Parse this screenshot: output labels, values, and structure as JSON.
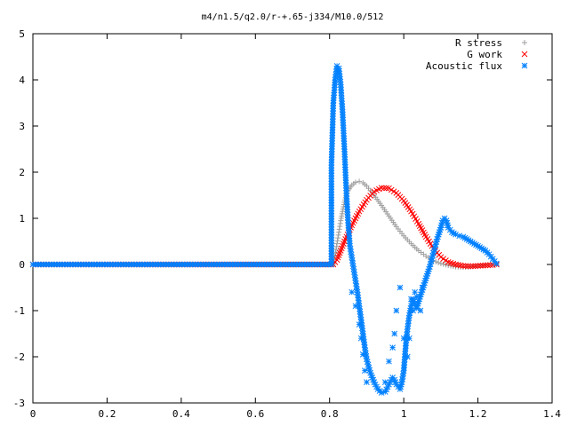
{
  "chart_data": {
    "type": "scatter",
    "title": "m4/n1.5/q2.0/r-+.65-j334/M10.0/512",
    "xlabel": "",
    "ylabel": "",
    "xlim": [
      0,
      1.4
    ],
    "ylim": [
      -3,
      5
    ],
    "x_ticks": [
      "0",
      "0.2",
      "0.4",
      "0.6",
      "0.8",
      "1",
      "1.2",
      "1.4"
    ],
    "y_ticks": [
      "5",
      "4",
      "3",
      "2",
      "1",
      "0",
      "-1",
      "-2",
      "-3"
    ],
    "grid": false,
    "legend_position": "top-right",
    "series": [
      {
        "name": "R stress",
        "marker": "plus",
        "color": "#a0a0a0",
        "points": [
          [
            0.0,
            0
          ],
          [
            0.81,
            0
          ],
          [
            0.815,
            0.2
          ],
          [
            0.82,
            0.45
          ],
          [
            0.825,
            0.7
          ],
          [
            0.83,
            0.95
          ],
          [
            0.835,
            1.15
          ],
          [
            0.84,
            1.35
          ],
          [
            0.845,
            1.5
          ],
          [
            0.85,
            1.6
          ],
          [
            0.86,
            1.72
          ],
          [
            0.87,
            1.78
          ],
          [
            0.88,
            1.8
          ],
          [
            0.89,
            1.77
          ],
          [
            0.9,
            1.7
          ],
          [
            0.92,
            1.5
          ],
          [
            0.94,
            1.28
          ],
          [
            0.96,
            1.05
          ],
          [
            0.98,
            0.82
          ],
          [
            1.0,
            0.62
          ],
          [
            1.02,
            0.45
          ],
          [
            1.04,
            0.3
          ],
          [
            1.06,
            0.18
          ],
          [
            1.08,
            0.08
          ],
          [
            1.1,
            0.02
          ],
          [
            1.12,
            -0.02
          ],
          [
            1.14,
            -0.05
          ],
          [
            1.16,
            -0.06
          ],
          [
            1.18,
            -0.05
          ],
          [
            1.2,
            -0.03
          ],
          [
            1.22,
            -0.01
          ],
          [
            1.25,
            0
          ]
        ]
      },
      {
        "name": "G work",
        "marker": "cross",
        "color": "#ff0000",
        "points": [
          [
            0.0,
            0
          ],
          [
            0.81,
            0
          ],
          [
            0.82,
            0.1
          ],
          [
            0.83,
            0.3
          ],
          [
            0.84,
            0.5
          ],
          [
            0.86,
            0.85
          ],
          [
            0.88,
            1.15
          ],
          [
            0.9,
            1.4
          ],
          [
            0.92,
            1.58
          ],
          [
            0.94,
            1.66
          ],
          [
            0.96,
            1.65
          ],
          [
            0.98,
            1.55
          ],
          [
            1.0,
            1.38
          ],
          [
            1.02,
            1.15
          ],
          [
            1.04,
            0.88
          ],
          [
            1.06,
            0.6
          ],
          [
            1.08,
            0.35
          ],
          [
            1.1,
            0.16
          ],
          [
            1.12,
            0.05
          ],
          [
            1.14,
            0.0
          ],
          [
            1.16,
            -0.03
          ],
          [
            1.18,
            -0.04
          ],
          [
            1.2,
            -0.03
          ],
          [
            1.22,
            -0.02
          ],
          [
            1.24,
            -0.01
          ],
          [
            1.25,
            0
          ]
        ]
      },
      {
        "name": "Acoustic flux",
        "marker": "star",
        "color": "#0080ff",
        "points": [
          [
            0.0,
            0
          ],
          [
            0.805,
            0
          ],
          [
            0.805,
            2.15
          ],
          [
            0.81,
            3.5
          ],
          [
            0.815,
            4.0
          ],
          [
            0.82,
            4.3
          ],
          [
            0.825,
            4.25
          ],
          [
            0.83,
            3.9
          ],
          [
            0.835,
            3.3
          ],
          [
            0.84,
            2.5
          ],
          [
            0.845,
            1.6
          ],
          [
            0.85,
            0.9
          ],
          [
            0.855,
            0.4
          ],
          [
            0.86,
            0.15
          ],
          [
            0.865,
            -0.1
          ],
          [
            0.87,
            -0.35
          ],
          [
            0.875,
            -0.6
          ],
          [
            0.88,
            -0.9
          ],
          [
            0.885,
            -1.2
          ],
          [
            0.89,
            -1.5
          ],
          [
            0.895,
            -1.8
          ],
          [
            0.9,
            -2.05
          ],
          [
            0.91,
            -2.35
          ],
          [
            0.92,
            -2.55
          ],
          [
            0.93,
            -2.7
          ],
          [
            0.94,
            -2.78
          ],
          [
            0.95,
            -2.76
          ],
          [
            0.96,
            -2.6
          ],
          [
            0.97,
            -2.45
          ],
          [
            0.975,
            -2.5
          ],
          [
            0.98,
            -2.6
          ],
          [
            0.99,
            -2.7
          ],
          [
            0.995,
            -2.55
          ],
          [
            1.0,
            -2.3
          ],
          [
            1.003,
            -2.0
          ],
          [
            1.006,
            -1.7
          ],
          [
            1.01,
            -1.4
          ],
          [
            1.015,
            -1.1
          ],
          [
            1.02,
            -0.9
          ],
          [
            1.025,
            -0.75
          ],
          [
            1.03,
            -0.85
          ],
          [
            1.035,
            -0.95
          ],
          [
            1.04,
            -0.8
          ],
          [
            1.05,
            -0.55
          ],
          [
            1.06,
            -0.3
          ],
          [
            1.07,
            -0.05
          ],
          [
            1.08,
            0.25
          ],
          [
            1.09,
            0.55
          ],
          [
            1.1,
            0.8
          ],
          [
            1.105,
            0.95
          ],
          [
            1.11,
            1.0
          ],
          [
            1.115,
            0.95
          ],
          [
            1.12,
            0.8
          ],
          [
            1.13,
            0.7
          ],
          [
            1.14,
            0.65
          ],
          [
            1.15,
            0.62
          ],
          [
            1.16,
            0.6
          ],
          [
            1.17,
            0.55
          ],
          [
            1.18,
            0.5
          ],
          [
            1.19,
            0.45
          ],
          [
            1.2,
            0.4
          ],
          [
            1.21,
            0.35
          ],
          [
            1.22,
            0.3
          ],
          [
            1.23,
            0.22
          ],
          [
            1.24,
            0.12
          ],
          [
            1.25,
            0.02
          ]
        ],
        "scatter_points": [
          [
            0.86,
            -0.6
          ],
          [
            0.87,
            -0.9
          ],
          [
            0.88,
            -1.3
          ],
          [
            0.885,
            -1.6
          ],
          [
            0.89,
            -1.95
          ],
          [
            0.895,
            -2.3
          ],
          [
            0.9,
            -2.55
          ],
          [
            0.95,
            -2.55
          ],
          [
            0.96,
            -2.1
          ],
          [
            0.97,
            -1.8
          ],
          [
            0.975,
            -1.5
          ],
          [
            0.98,
            -1.0
          ],
          [
            0.99,
            -0.5
          ],
          [
            1.0,
            -1.6
          ],
          [
            1.01,
            -2.0
          ],
          [
            1.015,
            -1.6
          ],
          [
            1.02,
            -0.75
          ],
          [
            1.025,
            -1.0
          ],
          [
            1.03,
            -0.6
          ],
          [
            1.035,
            -0.7
          ],
          [
            1.045,
            -1.0
          ],
          [
            1.05,
            -0.5
          ]
        ]
      }
    ]
  }
}
